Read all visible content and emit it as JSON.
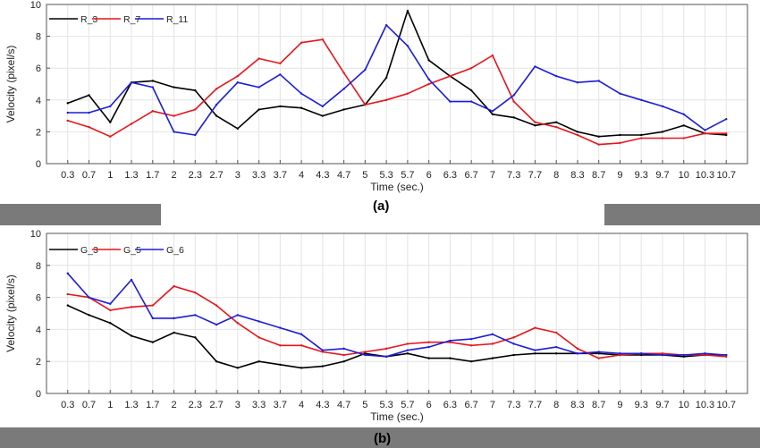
{
  "chart_data": [
    {
      "type": "line",
      "panel_label": "(a)",
      "xlabel": "Time (sec.)",
      "ylabel": "Velocity (pixel/s)",
      "ylim": [
        0,
        10
      ],
      "yticks": [
        "0",
        "2",
        "4",
        "6",
        "8",
        "10"
      ],
      "categories": [
        "0.3",
        "0.7",
        "1",
        "1.3",
        "1.7",
        "2",
        "2.3",
        "2.7",
        "3",
        "3.3",
        "3.7",
        "4",
        "4.3",
        "4.7",
        "5",
        "5.3",
        "5.7",
        "6",
        "6.3",
        "6.7",
        "7",
        "7.3",
        "7.7",
        "8",
        "8.3",
        "8.7",
        "9",
        "9.3",
        "9.7",
        "10",
        "10.3",
        "10.7"
      ],
      "grid": true,
      "legend_position": "top-left",
      "series": [
        {
          "name": "R_3",
          "color": "#000000",
          "values": [
            3.8,
            4.3,
            2.6,
            5.1,
            5.2,
            4.8,
            4.6,
            3.0,
            2.2,
            3.4,
            3.6,
            3.5,
            3.0,
            3.4,
            3.7,
            5.4,
            9.6,
            6.5,
            5.5,
            4.6,
            3.1,
            2.9,
            2.4,
            2.6,
            2.0,
            1.7,
            1.8,
            1.8,
            2.0,
            2.4,
            1.9,
            1.8
          ]
        },
        {
          "name": "R_7",
          "color": "#e8141a",
          "values": [
            2.7,
            2.3,
            1.7,
            2.5,
            3.3,
            3.0,
            3.4,
            4.7,
            5.5,
            6.6,
            6.3,
            7.6,
            7.8,
            5.7,
            3.7,
            4.0,
            4.4,
            5.0,
            5.5,
            6.0,
            6.8,
            3.9,
            2.6,
            2.3,
            1.8,
            1.2,
            1.3,
            1.6,
            1.6,
            1.6,
            1.9,
            1.9
          ]
        },
        {
          "name": "R_11",
          "color": "#1c1cd8",
          "values": [
            3.2,
            3.2,
            3.6,
            5.1,
            4.8,
            2.0,
            1.8,
            3.7,
            5.1,
            4.8,
            5.6,
            4.4,
            3.6,
            4.7,
            5.9,
            8.7,
            7.4,
            5.3,
            3.9,
            3.9,
            3.3,
            4.3,
            6.1,
            5.5,
            5.1,
            5.2,
            4.4,
            4.0,
            3.6,
            3.1,
            2.1,
            2.8
          ]
        }
      ]
    },
    {
      "type": "line",
      "panel_label": "(b)",
      "xlabel": "Time (sec.)",
      "ylabel": "Velocity (pixel/s)",
      "ylim": [
        0,
        10
      ],
      "yticks": [
        "0",
        "2",
        "4",
        "6",
        "8",
        "10"
      ],
      "categories": [
        "0.3",
        "0.7",
        "1",
        "1.3",
        "1.7",
        "2",
        "2.3",
        "2.7",
        "3",
        "3.3",
        "3.7",
        "4",
        "4.3",
        "4.7",
        "5",
        "5.3",
        "5.7",
        "6",
        "6.3",
        "6.7",
        "7",
        "7.3",
        "7.7",
        "8",
        "8.3",
        "8.7",
        "9",
        "9.3",
        "9.7",
        "10",
        "10.3",
        "10.7"
      ],
      "grid": true,
      "legend_position": "top-left",
      "series": [
        {
          "name": "G_3",
          "color": "#000000",
          "values": [
            5.5,
            4.9,
            4.4,
            3.6,
            3.2,
            3.8,
            3.5,
            2.0,
            1.6,
            2.0,
            1.8,
            1.6,
            1.7,
            2.0,
            2.5,
            2.3,
            2.5,
            2.2,
            2.2,
            2.0,
            2.2,
            2.4,
            2.5,
            2.5,
            2.5,
            2.5,
            2.4,
            2.4,
            2.4,
            2.3,
            2.4,
            2.4
          ]
        },
        {
          "name": "G_5",
          "color": "#e8141a",
          "values": [
            6.2,
            6.0,
            5.2,
            5.4,
            5.5,
            6.7,
            6.3,
            5.5,
            4.4,
            3.5,
            3.0,
            3.0,
            2.6,
            2.4,
            2.6,
            2.8,
            3.1,
            3.2,
            3.2,
            3.0,
            3.1,
            3.5,
            4.1,
            3.8,
            2.8,
            2.2,
            2.4,
            2.5,
            2.5,
            2.4,
            2.4,
            2.3
          ]
        },
        {
          "name": "G_6",
          "color": "#1c1cd8",
          "values": [
            7.5,
            6.0,
            5.6,
            7.1,
            4.7,
            4.7,
            4.9,
            4.3,
            4.9,
            4.5,
            4.1,
            3.7,
            2.7,
            2.8,
            2.4,
            2.3,
            2.7,
            2.9,
            3.3,
            3.4,
            3.7,
            3.1,
            2.7,
            2.9,
            2.5,
            2.6,
            2.5,
            2.5,
            2.4,
            2.4,
            2.5,
            2.4
          ]
        }
      ]
    }
  ]
}
